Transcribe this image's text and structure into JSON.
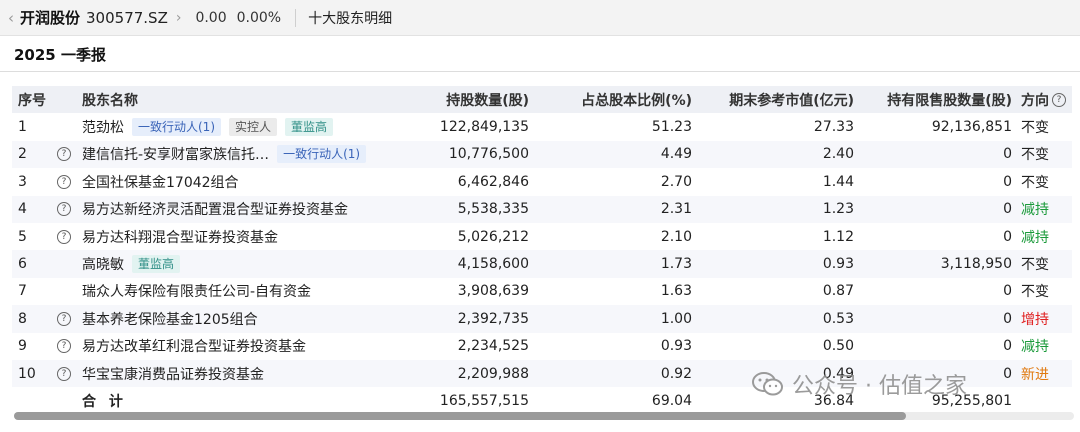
{
  "topbar": {
    "back_icon": "chevron-left-icon",
    "stock_name": "开润股份",
    "stock_code": "300577.SZ",
    "chevron_icon": "chevron-right-icon",
    "price": "0.00",
    "change_pct": "0.00%",
    "page_name": "十大股东明细"
  },
  "section": {
    "title": "2025 一季报"
  },
  "table": {
    "headers": {
      "idx": "序号",
      "name": "股东名称",
      "shares": "持股数量(股)",
      "ratio": "占总股本比例(%)",
      "market_value": "期末参考市值(亿元)",
      "restricted": "持有限售股数量(股)",
      "direction": "方向"
    },
    "rows": [
      {
        "idx": "1",
        "help": false,
        "name": "范劲松",
        "tags": [
          {
            "text": "一致行动人(1)",
            "kind": "blue"
          },
          {
            "text": "实控人",
            "kind": "gray"
          },
          {
            "text": "董监高",
            "kind": "teal"
          }
        ],
        "shares": "122,849,135",
        "ratio": "51.23",
        "mv": "27.33",
        "restricted": "92,136,851",
        "dir": "不变",
        "dir_kind": "same"
      },
      {
        "idx": "2",
        "help": true,
        "name": "建信信托-安享财富家族信托…",
        "tags": [
          {
            "text": "一致行动人(1)",
            "kind": "blue"
          }
        ],
        "shares": "10,776,500",
        "ratio": "4.49",
        "mv": "2.40",
        "restricted": "0",
        "dir": "不变",
        "dir_kind": "same"
      },
      {
        "idx": "3",
        "help": true,
        "name": "全国社保基金17042组合",
        "tags": [],
        "shares": "6,462,846",
        "ratio": "2.70",
        "mv": "1.44",
        "restricted": "0",
        "dir": "不变",
        "dir_kind": "same"
      },
      {
        "idx": "4",
        "help": true,
        "name": "易方达新经济灵活配置混合型证券投资基金",
        "tags": [],
        "shares": "5,538,335",
        "ratio": "2.31",
        "mv": "1.23",
        "restricted": "0",
        "dir": "减持",
        "dir_kind": "down"
      },
      {
        "idx": "5",
        "help": true,
        "name": "易方达科翔混合型证券投资基金",
        "tags": [],
        "shares": "5,026,212",
        "ratio": "2.10",
        "mv": "1.12",
        "restricted": "0",
        "dir": "减持",
        "dir_kind": "down"
      },
      {
        "idx": "6",
        "help": false,
        "name": "高晓敏",
        "tags": [
          {
            "text": "董监高",
            "kind": "teal"
          }
        ],
        "shares": "4,158,600",
        "ratio": "1.73",
        "mv": "0.93",
        "restricted": "3,118,950",
        "dir": "不变",
        "dir_kind": "same"
      },
      {
        "idx": "7",
        "help": false,
        "name": "瑞众人寿保险有限责任公司-自有资金",
        "tags": [],
        "shares": "3,908,639",
        "ratio": "1.63",
        "mv": "0.87",
        "restricted": "0",
        "dir": "不变",
        "dir_kind": "same"
      },
      {
        "idx": "8",
        "help": true,
        "name": "基本养老保险基金1205组合",
        "tags": [],
        "shares": "2,392,735",
        "ratio": "1.00",
        "mv": "0.53",
        "restricted": "0",
        "dir": "增持",
        "dir_kind": "up"
      },
      {
        "idx": "9",
        "help": true,
        "name": "易方达改革红利混合型证券投资基金",
        "tags": [],
        "shares": "2,234,525",
        "ratio": "0.93",
        "mv": "0.50",
        "restricted": "0",
        "dir": "减持",
        "dir_kind": "down"
      },
      {
        "idx": "10",
        "help": true,
        "name": "华宝宝康消费品证券投资基金",
        "tags": [],
        "shares": "2,209,988",
        "ratio": "0.92",
        "mv": "0.49",
        "restricted": "0",
        "dir": "新进",
        "dir_kind": "new"
      }
    ],
    "total": {
      "label": "合 计",
      "shares": "165,557,515",
      "ratio": "69.04",
      "mv": "36.84",
      "restricted": "95,255,801"
    }
  },
  "watermark": {
    "text": "公众号 · 估值之家",
    "icon": "wechat-icon"
  },
  "colors": {
    "header_bg": "#eef0f5",
    "stripe_bg": "#f6f7fb",
    "up": "#e02020",
    "down": "#1a9a3a",
    "new": "#e07a10"
  }
}
